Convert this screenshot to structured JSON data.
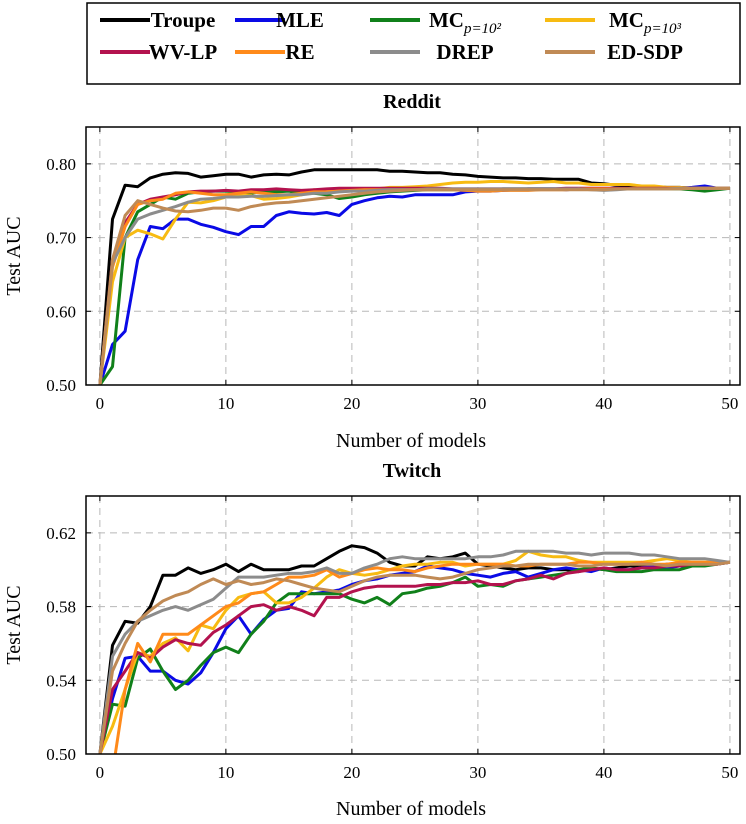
{
  "legend": [
    {
      "label": "Troupe",
      "sub": "",
      "color": "#000000"
    },
    {
      "label": "MLE",
      "sub": "",
      "color": "#0a0ae6"
    },
    {
      "label": "MC",
      "sub": "p=10²",
      "color": "#10801a"
    },
    {
      "label": "MC",
      "sub": "p=10³",
      "color": "#f7bb12"
    },
    {
      "label": "WV-LP",
      "sub": "",
      "color": "#b3124e"
    },
    {
      "label": "RE",
      "sub": "",
      "color": "#ff8a1a"
    },
    {
      "label": "DREP",
      "sub": "",
      "color": "#8c8c8c"
    },
    {
      "label": "ED-SDP",
      "sub": "",
      "color": "#c08a55"
    }
  ],
  "chart_data": [
    {
      "type": "line",
      "title": "Reddit",
      "xlabel": "Number of models",
      "ylabel": "Test AUC",
      "xlim": [
        -1.1,
        50.8
      ],
      "ylim": [
        0.5,
        0.85
      ],
      "xticks": [
        0,
        10,
        20,
        30,
        40,
        50
      ],
      "yticks": [
        0.5,
        0.6,
        0.7,
        0.8
      ],
      "ytick_labels": [
        "0.50",
        "0.60",
        "0.70",
        "0.80"
      ],
      "grid": true,
      "legend_position": "top",
      "series": [
        {
          "name": "Troupe",
          "values": [
            0.5,
            0.725,
            0.771,
            0.769,
            0.781,
            0.786,
            0.788,
            0.787,
            0.782,
            0.784,
            0.786,
            0.786,
            0.782,
            0.785,
            0.786,
            0.785,
            0.789,
            0.792,
            0.792,
            0.792,
            0.792,
            0.792,
            0.792,
            0.79,
            0.79,
            0.789,
            0.788,
            0.788,
            0.786,
            0.785,
            0.783,
            0.782,
            0.781,
            0.781,
            0.78,
            0.78,
            0.779,
            0.779,
            0.779,
            0.774,
            0.773,
            0.771,
            0.77,
            0.769,
            0.769,
            0.768,
            0.768,
            0.767,
            0.767,
            0.767,
            0.767
          ]
        },
        {
          "name": "MLE",
          "values": [
            0.5,
            0.555,
            0.573,
            0.67,
            0.715,
            0.712,
            0.725,
            0.725,
            0.718,
            0.714,
            0.708,
            0.704,
            0.715,
            0.715,
            0.73,
            0.735,
            0.733,
            0.732,
            0.734,
            0.73,
            0.745,
            0.75,
            0.754,
            0.756,
            0.755,
            0.758,
            0.758,
            0.758,
            0.758,
            0.762,
            0.763,
            0.763,
            0.764,
            0.765,
            0.766,
            0.766,
            0.766,
            0.765,
            0.766,
            0.766,
            0.766,
            0.767,
            0.766,
            0.767,
            0.767,
            0.767,
            0.767,
            0.768,
            0.77,
            0.767,
            0.767
          ]
        },
        {
          "name": "MC p=10^2",
          "values": [
            0.5,
            0.525,
            0.7,
            0.735,
            0.745,
            0.755,
            0.752,
            0.76,
            0.762,
            0.763,
            0.763,
            0.762,
            0.76,
            0.763,
            0.762,
            0.763,
            0.76,
            0.76,
            0.758,
            0.753,
            0.755,
            0.758,
            0.76,
            0.762,
            0.763,
            0.764,
            0.765,
            0.765,
            0.765,
            0.765,
            0.765,
            0.765,
            0.766,
            0.766,
            0.766,
            0.766,
            0.766,
            0.766,
            0.766,
            0.766,
            0.766,
            0.766,
            0.766,
            0.766,
            0.766,
            0.766,
            0.766,
            0.765,
            0.763,
            0.765,
            0.767
          ]
        },
        {
          "name": "MC p=10^3",
          "values": [
            0.5,
            0.64,
            0.7,
            0.71,
            0.705,
            0.698,
            0.725,
            0.748,
            0.747,
            0.75,
            0.755,
            0.757,
            0.757,
            0.752,
            0.753,
            0.755,
            0.758,
            0.765,
            0.762,
            0.764,
            0.764,
            0.765,
            0.766,
            0.768,
            0.768,
            0.769,
            0.77,
            0.772,
            0.774,
            0.775,
            0.775,
            0.776,
            0.776,
            0.775,
            0.774,
            0.775,
            0.776,
            0.774,
            0.774,
            0.772,
            0.772,
            0.772,
            0.772,
            0.77,
            0.77,
            0.768,
            0.768,
            0.767,
            0.767,
            0.767,
            0.767
          ]
        },
        {
          "name": "WV-LP",
          "values": [
            0.5,
            0.67,
            0.72,
            0.745,
            0.752,
            0.755,
            0.758,
            0.762,
            0.763,
            0.763,
            0.764,
            0.763,
            0.765,
            0.765,
            0.766,
            0.765,
            0.764,
            0.765,
            0.766,
            0.767,
            0.767,
            0.767,
            0.767,
            0.767,
            0.767,
            0.767,
            0.767,
            0.767,
            0.766,
            0.766,
            0.766,
            0.766,
            0.766,
            0.766,
            0.766,
            0.766,
            0.766,
            0.767,
            0.767,
            0.767,
            0.767,
            0.767,
            0.767,
            0.767,
            0.767,
            0.767,
            0.767,
            0.767,
            0.767,
            0.767,
            0.767
          ]
        },
        {
          "name": "RE",
          "values": [
            0.5,
            0.66,
            0.715,
            0.745,
            0.75,
            0.752,
            0.76,
            0.762,
            0.76,
            0.758,
            0.758,
            0.76,
            0.762,
            0.76,
            0.758,
            0.758,
            0.76,
            0.762,
            0.762,
            0.763,
            0.764,
            0.765,
            0.765,
            0.765,
            0.765,
            0.765,
            0.765,
            0.765,
            0.765,
            0.764,
            0.763,
            0.763,
            0.764,
            0.764,
            0.764,
            0.765,
            0.765,
            0.765,
            0.766,
            0.766,
            0.766,
            0.766,
            0.766,
            0.766,
            0.766,
            0.766,
            0.767,
            0.767,
            0.767,
            0.767,
            0.767
          ]
        },
        {
          "name": "DREP",
          "values": [
            0.5,
            0.665,
            0.7,
            0.725,
            0.732,
            0.737,
            0.742,
            0.748,
            0.752,
            0.753,
            0.755,
            0.755,
            0.756,
            0.756,
            0.757,
            0.758,
            0.758,
            0.76,
            0.76,
            0.762,
            0.763,
            0.763,
            0.764,
            0.765,
            0.765,
            0.765,
            0.766,
            0.766,
            0.766,
            0.766,
            0.766,
            0.766,
            0.766,
            0.766,
            0.766,
            0.766,
            0.766,
            0.766,
            0.766,
            0.765,
            0.764,
            0.765,
            0.766,
            0.766,
            0.766,
            0.766,
            0.767,
            0.767,
            0.767,
            0.767,
            0.767
          ]
        },
        {
          "name": "ED-SDP",
          "values": [
            0.5,
            0.67,
            0.73,
            0.75,
            0.745,
            0.74,
            0.736,
            0.735,
            0.737,
            0.74,
            0.74,
            0.737,
            0.742,
            0.745,
            0.747,
            0.748,
            0.75,
            0.752,
            0.754,
            0.756,
            0.758,
            0.76,
            0.762,
            0.763,
            0.764,
            0.765,
            0.765,
            0.765,
            0.765,
            0.765,
            0.765,
            0.765,
            0.765,
            0.765,
            0.765,
            0.765,
            0.765,
            0.765,
            0.765,
            0.765,
            0.765,
            0.766,
            0.766,
            0.766,
            0.766,
            0.766,
            0.766,
            0.767,
            0.767,
            0.767,
            0.767
          ]
        }
      ]
    },
    {
      "type": "line",
      "title": "Twitch",
      "xlabel": "Number of models",
      "ylabel": "Test AUC",
      "xlim": [
        -1.1,
        50.8
      ],
      "ylim": [
        0.5,
        0.64
      ],
      "xticks": [
        0,
        10,
        20,
        30,
        40,
        50
      ],
      "yticks": [
        0.5,
        0.54,
        0.58,
        0.62
      ],
      "ytick_labels": [
        "0.50",
        "0.54",
        "0.58",
        "0.62"
      ],
      "grid": true,
      "series": [
        {
          "name": "Troupe",
          "values": [
            0.5,
            0.559,
            0.572,
            0.571,
            0.58,
            0.597,
            0.597,
            0.601,
            0.598,
            0.6,
            0.603,
            0.599,
            0.603,
            0.6,
            0.6,
            0.6,
            0.602,
            0.602,
            0.606,
            0.61,
            0.613,
            0.612,
            0.609,
            0.604,
            0.602,
            0.602,
            0.607,
            0.606,
            0.607,
            0.609,
            0.603,
            0.602,
            0.601,
            0.6,
            0.601,
            0.601,
            0.6,
            0.6,
            0.599,
            0.601,
            0.6,
            0.601,
            0.602,
            0.602,
            0.602,
            0.603,
            0.603,
            0.603,
            0.603,
            0.604,
            0.604
          ]
        },
        {
          "name": "MLE",
          "values": [
            0.5,
            0.53,
            0.552,
            0.553,
            0.545,
            0.545,
            0.54,
            0.538,
            0.544,
            0.555,
            0.568,
            0.575,
            0.565,
            0.573,
            0.578,
            0.579,
            0.588,
            0.587,
            0.588,
            0.589,
            0.592,
            0.594,
            0.595,
            0.597,
            0.598,
            0.599,
            0.602,
            0.601,
            0.6,
            0.598,
            0.597,
            0.596,
            0.598,
            0.599,
            0.596,
            0.598,
            0.6,
            0.601,
            0.6,
            0.599,
            0.601,
            0.6,
            0.6,
            0.601,
            0.602,
            0.601,
            0.602,
            0.602,
            0.603,
            0.603,
            0.604
          ]
        },
        {
          "name": "MC p=10^2",
          "values": [
            0.5,
            0.527,
            0.526,
            0.552,
            0.557,
            0.545,
            0.535,
            0.54,
            0.548,
            0.555,
            0.558,
            0.555,
            0.565,
            0.572,
            0.582,
            0.587,
            0.587,
            0.587,
            0.587,
            0.587,
            0.584,
            0.582,
            0.585,
            0.581,
            0.587,
            0.588,
            0.59,
            0.591,
            0.593,
            0.596,
            0.591,
            0.592,
            0.591,
            0.594,
            0.595,
            0.596,
            0.597,
            0.598,
            0.6,
            0.601,
            0.6,
            0.599,
            0.599,
            0.599,
            0.6,
            0.6,
            0.6,
            0.602,
            0.602,
            0.603,
            0.604
          ]
        },
        {
          "name": "MC p=10^3",
          "values": [
            0.5,
            0.515,
            0.535,
            0.555,
            0.553,
            0.56,
            0.563,
            0.556,
            0.57,
            0.568,
            0.578,
            0.585,
            0.587,
            0.588,
            0.582,
            0.582,
            0.585,
            0.59,
            0.596,
            0.6,
            0.598,
            0.597,
            0.598,
            0.6,
            0.602,
            0.603,
            0.603,
            0.604,
            0.604,
            0.602,
            0.603,
            0.603,
            0.603,
            0.605,
            0.61,
            0.608,
            0.607,
            0.607,
            0.605,
            0.604,
            0.604,
            0.604,
            0.604,
            0.604,
            0.605,
            0.606,
            0.605,
            0.604,
            0.604,
            0.604,
            0.604
          ]
        },
        {
          "name": "WV-LP",
          "values": [
            0.5,
            0.535,
            0.545,
            0.555,
            0.552,
            0.558,
            0.562,
            0.56,
            0.559,
            0.566,
            0.57,
            0.575,
            0.58,
            0.581,
            0.578,
            0.58,
            0.578,
            0.575,
            0.585,
            0.585,
            0.588,
            0.59,
            0.591,
            0.591,
            0.591,
            0.591,
            0.592,
            0.592,
            0.593,
            0.593,
            0.594,
            0.592,
            0.592,
            0.594,
            0.595,
            0.597,
            0.595,
            0.598,
            0.599,
            0.6,
            0.601,
            0.6,
            0.6,
            0.601,
            0.601,
            0.602,
            0.602,
            0.603,
            0.603,
            0.603,
            0.604
          ]
        },
        {
          "name": "RE",
          "values": [
            0.5,
            0.49,
            0.535,
            0.56,
            0.55,
            0.565,
            0.565,
            0.565,
            0.57,
            0.575,
            0.58,
            0.582,
            0.587,
            0.588,
            0.592,
            0.596,
            0.596,
            0.597,
            0.6,
            0.596,
            0.598,
            0.6,
            0.601,
            0.6,
            0.6,
            0.599,
            0.601,
            0.602,
            0.603,
            0.603,
            0.603,
            0.603,
            0.603,
            0.602,
            0.602,
            0.603,
            0.603,
            0.603,
            0.604,
            0.604,
            0.603,
            0.603,
            0.603,
            0.604,
            0.603,
            0.603,
            0.604,
            0.604,
            0.604,
            0.604,
            0.604
          ]
        },
        {
          "name": "DREP",
          "values": [
            0.5,
            0.553,
            0.565,
            0.572,
            0.575,
            0.578,
            0.58,
            0.578,
            0.581,
            0.584,
            0.59,
            0.596,
            0.596,
            0.596,
            0.597,
            0.598,
            0.598,
            0.599,
            0.601,
            0.598,
            0.598,
            0.601,
            0.603,
            0.606,
            0.607,
            0.606,
            0.606,
            0.606,
            0.606,
            0.606,
            0.607,
            0.607,
            0.608,
            0.61,
            0.61,
            0.61,
            0.61,
            0.609,
            0.609,
            0.608,
            0.609,
            0.609,
            0.609,
            0.608,
            0.608,
            0.607,
            0.606,
            0.606,
            0.606,
            0.605,
            0.604
          ]
        },
        {
          "name": "ED-SDP",
          "values": [
            0.5,
            0.545,
            0.56,
            0.572,
            0.578,
            0.583,
            0.586,
            0.588,
            0.592,
            0.595,
            0.592,
            0.594,
            0.592,
            0.593,
            0.595,
            0.594,
            0.592,
            0.59,
            0.589,
            0.588,
            0.591,
            0.594,
            0.596,
            0.597,
            0.597,
            0.597,
            0.596,
            0.595,
            0.596,
            0.598,
            0.6,
            0.601,
            0.602,
            0.602,
            0.603,
            0.603,
            0.603,
            0.603,
            0.602,
            0.602,
            0.603,
            0.603,
            0.603,
            0.603,
            0.603,
            0.602,
            0.603,
            0.603,
            0.603,
            0.603,
            0.604
          ]
        }
      ]
    }
  ]
}
